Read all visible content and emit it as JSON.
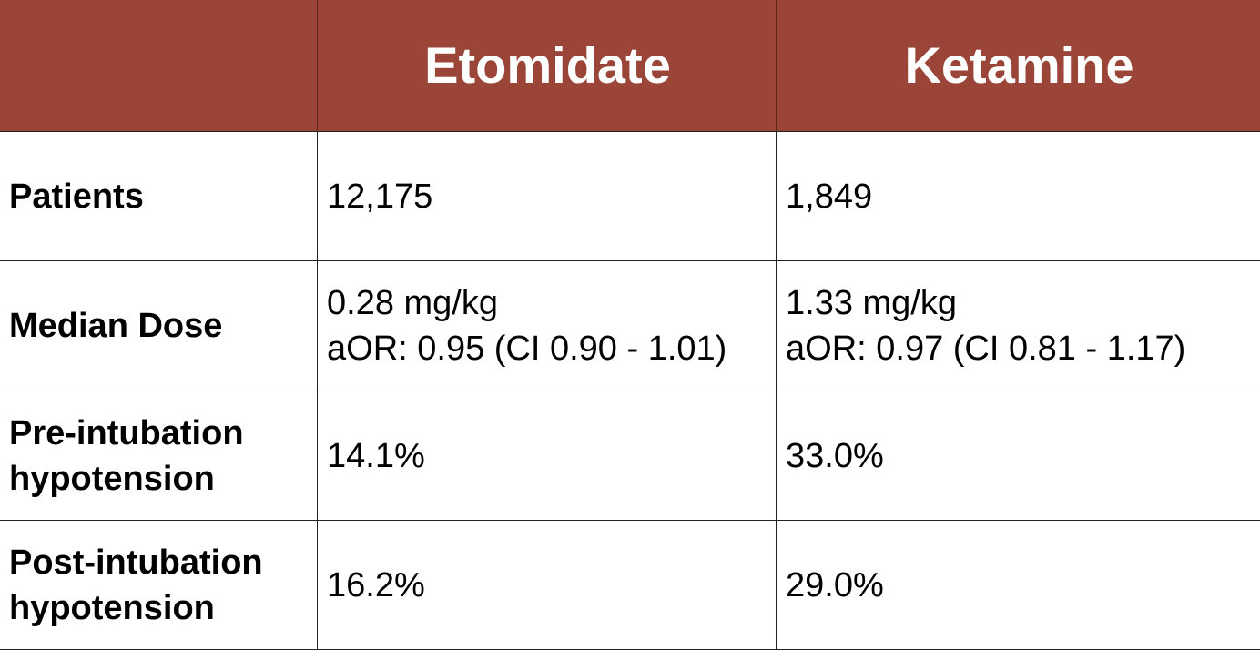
{
  "table": {
    "header": [
      "Etomidate",
      "Ketamine"
    ],
    "rows": [
      {
        "label": "Patients",
        "cells": [
          [
            "12,175"
          ],
          [
            "1,849"
          ]
        ]
      },
      {
        "label": "Median Dose",
        "cells": [
          [
            "0.28 mg/kg",
            "aOR: 0.95 (CI 0.90 - 1.01)"
          ],
          [
            "1.33 mg/kg",
            "aOR: 0.97 (CI 0.81 - 1.17)"
          ]
        ]
      },
      {
        "label": "Pre-intubation hypotension",
        "cells": [
          [
            "14.1%"
          ],
          [
            "33.0%"
          ]
        ]
      },
      {
        "label": "Post-intubation hypotension",
        "cells": [
          [
            "16.2%"
          ],
          [
            "29.0%"
          ]
        ]
      }
    ]
  }
}
